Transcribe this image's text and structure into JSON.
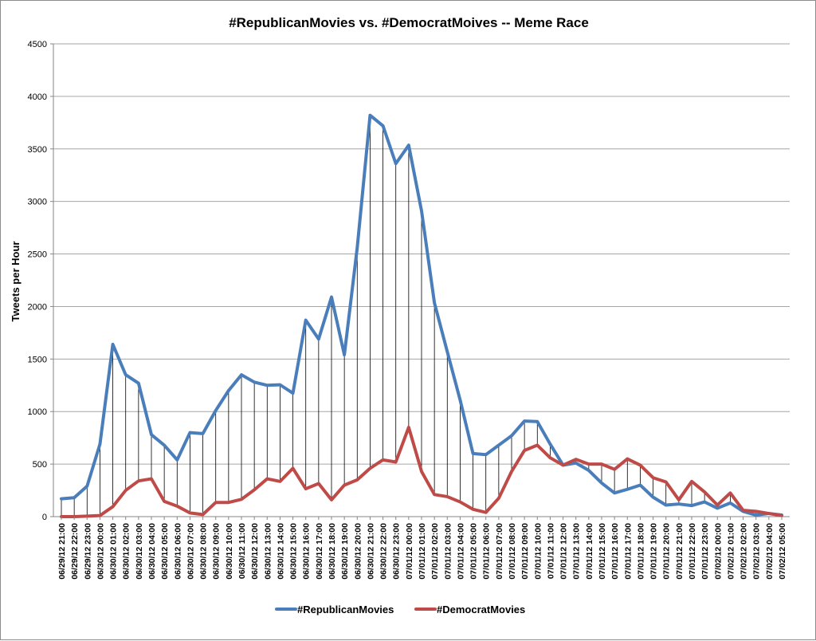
{
  "chart_data": {
    "type": "line",
    "title": "#RepublicanMovies vs. #DemocratMoives -- Meme Race",
    "xlabel": "",
    "ylabel": "Tweets per Hour",
    "ylim": [
      0,
      4500
    ],
    "yticks": [
      "0",
      "500",
      "1000",
      "1500",
      "2000",
      "2500",
      "3000",
      "3500",
      "4000",
      "4500"
    ],
    "grid": "horizontal",
    "legend_position": "bottom",
    "drop_lines": true,
    "categories": [
      "06/29/12 21:00",
      "06/29/12 22:00",
      "06/29/12 23:00",
      "06/30/12 00:00",
      "06/30/12 01:00",
      "06/30/12 02:00",
      "06/30/12 03:00",
      "06/30/12 04:00",
      "06/30/12 05:00",
      "06/30/12 06:00",
      "06/30/12 07:00",
      "06/30/12 08:00",
      "06/30/12 09:00",
      "06/30/12 10:00",
      "06/30/12 11:00",
      "06/30/12 12:00",
      "06/30/12 13:00",
      "06/30/12 14:00",
      "06/30/12 15:00",
      "06/30/12 16:00",
      "06/30/12 17:00",
      "06/30/12 18:00",
      "06/30/12 19:00",
      "06/30/12 20:00",
      "06/30/12 21:00",
      "06/30/12 22:00",
      "06/30/12 23:00",
      "07/01/12 00:00",
      "07/01/12 01:00",
      "07/01/12 02:00",
      "07/01/12 03:00",
      "07/01/12 04:00",
      "07/01/12 05:00",
      "07/01/12 06:00",
      "07/01/12 07:00",
      "07/01/12 08:00",
      "07/01/12 09:00",
      "07/01/12 10:00",
      "07/01/12 11:00",
      "07/01/12 12:00",
      "07/01/12 13:00",
      "07/01/12 14:00",
      "07/01/12 15:00",
      "07/01/12 16:00",
      "07/01/12 17:00",
      "07/01/12 18:00",
      "07/01/12 19:00",
      "07/01/12 20:00",
      "07/01/12 21:00",
      "07/01/12 22:00",
      "07/01/12 23:00",
      "07/02/12 00:00",
      "07/02/12 01:00",
      "07/02/12 02:00",
      "07/02/12 03:00",
      "07/02/12 04:00",
      "07/02/12 05:00"
    ],
    "series": [
      {
        "name": "#RepublicanMovies",
        "color": "#4a7ebb",
        "values": [
          170,
          180,
          290,
          690,
          1640,
          1350,
          1270,
          780,
          680,
          540,
          800,
          790,
          1010,
          1200,
          1350,
          1280,
          1250,
          1255,
          1175,
          1870,
          1690,
          2090,
          1540,
          2560,
          3820,
          3720,
          3360,
          3535,
          2910,
          2035,
          1570,
          1110,
          600,
          590,
          680,
          770,
          910,
          905,
          690,
          490,
          510,
          440,
          320,
          225,
          260,
          300,
          185,
          110,
          120,
          105,
          140,
          80,
          130,
          50,
          15,
          30,
          15
        ]
      },
      {
        "name": "#DemocratMovies",
        "color": "#be4b48",
        "values": [
          0,
          0,
          5,
          10,
          95,
          250,
          340,
          360,
          145,
          100,
          35,
          20,
          135,
          135,
          165,
          255,
          360,
          335,
          460,
          265,
          315,
          160,
          300,
          350,
          460,
          540,
          520,
          850,
          430,
          210,
          190,
          140,
          70,
          40,
          175,
          430,
          630,
          680,
          560,
          490,
          545,
          500,
          500,
          450,
          550,
          490,
          370,
          330,
          160,
          335,
          235,
          110,
          225,
          60,
          50,
          30,
          10
        ]
      }
    ]
  }
}
